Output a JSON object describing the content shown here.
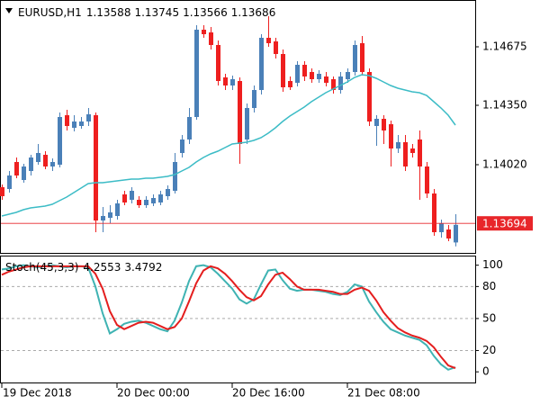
{
  "chart_data": [
    {
      "type": "candlestick",
      "title": "EURUSD,H1",
      "categories": [
        "19 Dec 2018",
        null,
        null,
        null,
        null,
        null,
        null,
        null,
        null,
        null,
        null,
        null,
        null,
        null,
        null,
        null,
        "20 Dec 00:00",
        null,
        null,
        null,
        null,
        null,
        null,
        null,
        null,
        null,
        null,
        null,
        null,
        null,
        null,
        null,
        "20 Dec 16:00",
        null,
        null,
        null,
        null,
        null,
        null,
        null,
        null,
        null,
        null,
        null,
        null,
        null,
        null,
        null,
        "21 Dec 08:00",
        null,
        null,
        null,
        null,
        null,
        null,
        null,
        null,
        null,
        null,
        null,
        null,
        null,
        null,
        null
      ],
      "open": [
        1.13895,
        1.13885,
        1.14035,
        1.13935,
        1.13985,
        1.14035,
        1.14075,
        1.1401,
        1.1402,
        1.14295,
        1.14225,
        1.14235,
        1.1426,
        1.14295,
        1.1371,
        1.13725,
        1.13735,
        1.13855,
        1.13825,
        1.13825,
        1.13795,
        1.13805,
        1.1381,
        1.13845,
        1.13875,
        1.14085,
        1.1416,
        1.14285,
        1.1477,
        1.14755,
        1.14685,
        1.14505,
        1.1446,
        1.14485,
        1.1416,
        1.14335,
        1.14435,
        1.14725,
        1.14705,
        1.14635,
        1.14485,
        1.14475,
        1.14575,
        1.14535,
        1.14495,
        1.1451,
        1.14495,
        1.14435,
        1.14495,
        1.14535,
        1.14695,
        1.14535,
        1.14235,
        1.14275,
        1.14245,
        1.1411,
        1.14145,
        1.1411,
        1.1416,
        1.1401,
        1.1386,
        1.13645,
        1.1366,
        1.13588
      ],
      "high": [
        1.1391,
        1.13985,
        1.1406,
        1.14025,
        1.14075,
        1.14135,
        1.14095,
        1.14055,
        1.1431,
        1.14325,
        1.14295,
        1.14285,
        1.14335,
        1.1431,
        1.13785,
        1.13795,
        1.13825,
        1.13875,
        1.13895,
        1.13845,
        1.13845,
        1.13855,
        1.13875,
        1.13905,
        1.14085,
        1.14185,
        1.14335,
        1.14795,
        1.14795,
        1.14785,
        1.1471,
        1.14525,
        1.14515,
        1.14505,
        1.1436,
        1.1446,
        1.14745,
        1.14845,
        1.14725,
        1.1466,
        1.1451,
        1.14595,
        1.14595,
        1.14555,
        1.14545,
        1.14535,
        1.1451,
        1.14535,
        1.14555,
        1.1471,
        1.14735,
        1.14555,
        1.14295,
        1.14295,
        1.14265,
        1.14185,
        1.14185,
        1.14135,
        1.1421,
        1.14035,
        1.13885,
        1.13715,
        1.13685,
        1.13745
      ],
      "low": [
        1.13825,
        1.13865,
        1.13945,
        1.1392,
        1.1396,
        1.1402,
        1.13995,
        1.13985,
        1.14005,
        1.1421,
        1.14205,
        1.1422,
        1.14235,
        1.13645,
        1.13645,
        1.13695,
        1.13715,
        1.13795,
        1.13805,
        1.1378,
        1.1378,
        1.1379,
        1.13795,
        1.13825,
        1.1386,
        1.1406,
        1.14135,
        1.1427,
        1.14725,
        1.1466,
        1.1446,
        1.14435,
        1.14435,
        1.14025,
        1.14135,
        1.1431,
        1.1441,
        1.14675,
        1.1461,
        1.14425,
        1.14435,
        1.14455,
        1.14485,
        1.14475,
        1.14475,
        1.14455,
        1.14415,
        1.14415,
        1.14475,
        1.14515,
        1.14515,
        1.14235,
        1.14125,
        1.14135,
        1.1401,
        1.14085,
        1.13985,
        1.1406,
        1.13825,
        1.13835,
        1.13625,
        1.13615,
        1.13595,
        1.13566
      ],
      "close": [
        1.13845,
        1.1396,
        1.1396,
        1.1401,
        1.1406,
        1.14085,
        1.1401,
        1.14035,
        1.14285,
        1.14235,
        1.1426,
        1.1426,
        1.143,
        1.1371,
        1.13735,
        1.13755,
        1.13805,
        1.1381,
        1.13875,
        1.13795,
        1.13825,
        1.13835,
        1.13855,
        1.13885,
        1.14035,
        1.1416,
        1.14285,
        1.1477,
        1.14745,
        1.14685,
        1.14485,
        1.1446,
        1.14495,
        1.14135,
        1.14335,
        1.14435,
        1.14725,
        1.14695,
        1.14635,
        1.1445,
        1.1445,
        1.14575,
        1.1451,
        1.14495,
        1.14525,
        1.14475,
        1.14435,
        1.1451,
        1.14535,
        1.14685,
        1.14535,
        1.1426,
        1.14275,
        1.1421,
        1.1411,
        1.14145,
        1.1401,
        1.14085,
        1.1401,
        1.1386,
        1.13645,
        1.13695,
        1.1361,
        1.13686
      ],
      "up_color": "#4a80b8",
      "down_color": "#ee1f1f",
      "ma": {
        "color": "#3cbcc6",
        "values": [
          1.13735,
          1.13745,
          1.13755,
          1.1377,
          1.1378,
          1.13785,
          1.1379,
          1.138,
          1.1382,
          1.1384,
          1.13865,
          1.1389,
          1.13915,
          1.1392,
          1.1392,
          1.13925,
          1.1393,
          1.13935,
          1.1394,
          1.1394,
          1.13945,
          1.13945,
          1.1395,
          1.13955,
          1.13965,
          1.13985,
          1.14005,
          1.14035,
          1.1406,
          1.1408,
          1.14095,
          1.14115,
          1.14135,
          1.1414,
          1.14145,
          1.14155,
          1.1417,
          1.14195,
          1.14225,
          1.1426,
          1.1429,
          1.14315,
          1.1434,
          1.1437,
          1.14395,
          1.1442,
          1.1444,
          1.1446,
          1.1448,
          1.14505,
          1.1452,
          1.14515,
          1.145,
          1.1448,
          1.1446,
          1.14445,
          1.14435,
          1.14425,
          1.1442,
          1.14405,
          1.1437,
          1.14335,
          1.14295,
          1.1424
        ]
      },
      "bid": 1.13694,
      "bid_color": "#e8262a",
      "ylim": [
        1.13535,
        1.1492
      ],
      "yticks": [
        1.14675,
        {
          "value": 1.1435,
          "label": "1.14350"
        },
        {
          "value": 1.1402,
          "label": "1.14020"
        }
      ]
    },
    {
      "type": "line",
      "title": "Stoch(45,3,3)",
      "series": [
        {
          "color": "#3fb3b3",
          "values": [
            96,
            97,
            99,
            100,
            99,
            98,
            99,
            100,
            99,
            98,
            99,
            99,
            98,
            80,
            55,
            36,
            40,
            45,
            47,
            48,
            46,
            43,
            40,
            38,
            48,
            65,
            85,
            99,
            100,
            98,
            92,
            85,
            78,
            68,
            64,
            68,
            82,
            95,
            96,
            86,
            78,
            76,
            77,
            77,
            76,
            75,
            73,
            72,
            75,
            82,
            80,
            66,
            56,
            47,
            40,
            37,
            34,
            32,
            30,
            25,
            15,
            7,
            2,
            4.2553
          ]
        },
        {
          "color": "#e41e1e",
          "values": [
            91,
            94,
            96,
            98,
            99,
            99,
            99,
            99,
            99,
            99,
            99,
            99,
            99,
            92,
            78,
            57,
            44,
            40,
            43,
            46,
            47,
            46,
            43,
            40,
            42,
            50,
            66,
            83,
            95,
            99,
            97,
            92,
            85,
            77,
            70,
            67,
            71,
            82,
            91,
            93,
            87,
            80,
            77,
            77,
            77,
            76,
            75,
            73,
            73,
            77,
            79,
            76,
            67,
            56,
            48,
            41,
            37,
            34,
            32,
            29,
            23,
            14,
            6,
            3.4792
          ]
        }
      ],
      "ylim": [
        -10,
        109
      ],
      "yticks": [
        100,
        80,
        50,
        20,
        0
      ],
      "levels": [
        80,
        50,
        20
      ]
    }
  ]
}
